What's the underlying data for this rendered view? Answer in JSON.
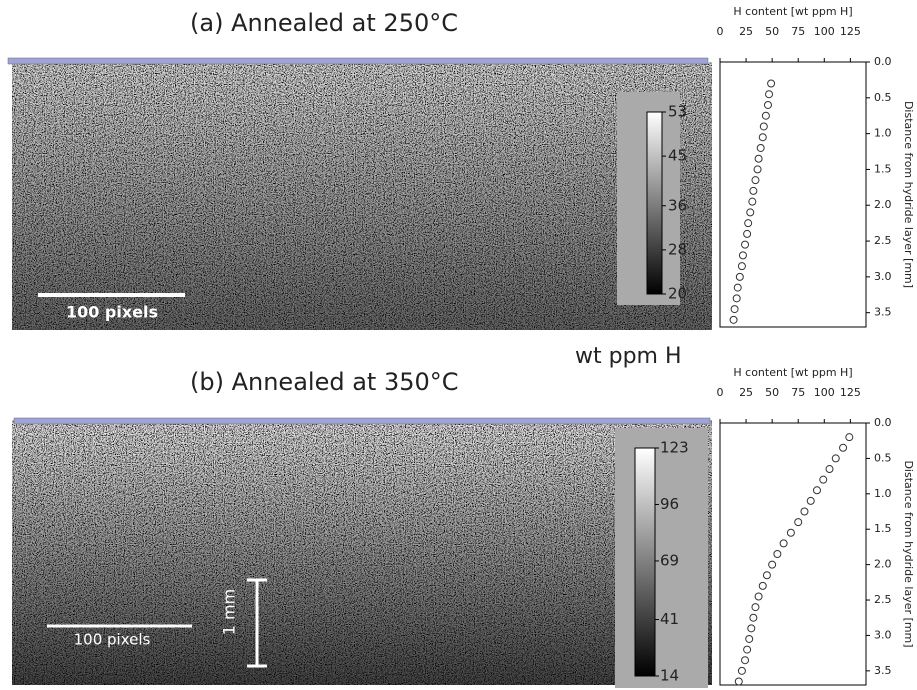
{
  "panels": [
    {
      "title": "(a) Annealed at 250°C",
      "scale_bar": "100 pixels",
      "colorbar": {
        "lim": [
          20,
          53
        ],
        "ticks": [
          20,
          28,
          36,
          45,
          53
        ]
      }
    },
    {
      "title": "(b) Annealed at 350°C",
      "scale_bar": "100 pixels",
      "scale_bar_vertical": "1 mm",
      "colorbar": {
        "lim": [
          14,
          123
        ],
        "ticks": [
          14,
          41,
          69,
          96,
          123
        ]
      }
    }
  ],
  "colorbar_label": "wt ppm H",
  "chart_data": [
    {
      "type": "scatter",
      "xlabel": "H content [wt ppm H]",
      "ylabel": "Distance from hydride layer [mm]",
      "xlim": [
        0,
        140
      ],
      "xticks": [
        0,
        25,
        50,
        75,
        100,
        125
      ],
      "ylim": [
        0,
        3.7
      ],
      "yticks": [
        {
          "value": 0,
          "label": "0.0"
        },
        0.5,
        {
          "value": 1,
          "label": "1.0"
        },
        1.5,
        {
          "value": 2,
          "label": "2.0"
        },
        2.5,
        {
          "value": 3,
          "label": "3.0"
        },
        3.5
      ],
      "x": [
        49,
        47,
        46,
        44,
        42,
        41,
        39,
        37,
        36,
        34,
        32,
        31,
        29,
        27,
        26,
        24,
        22,
        21,
        19,
        17,
        16,
        14,
        13
      ],
      "values": [
        0.3,
        0.45,
        0.6,
        0.75,
        0.9,
        1.05,
        1.2,
        1.35,
        1.5,
        1.65,
        1.8,
        1.95,
        2.1,
        2.25,
        2.4,
        2.55,
        2.7,
        2.85,
        3.0,
        3.15,
        3.3,
        3.45,
        3.6
      ]
    },
    {
      "type": "scatter",
      "xlabel": "H content [wt ppm H]",
      "ylabel": "Distance from hydride layer [mm]",
      "xlim": [
        0,
        140
      ],
      "xticks": [
        0,
        25,
        50,
        75,
        100,
        125
      ],
      "ylim": [
        0,
        3.7
      ],
      "yticks": [
        {
          "value": 0,
          "label": "0.0"
        },
        0.5,
        {
          "value": 1,
          "label": "1.0"
        },
        1.5,
        {
          "value": 2,
          "label": "2.0"
        },
        2.5,
        {
          "value": 3,
          "label": "3.0"
        },
        3.5
      ],
      "x": [
        124,
        118,
        111,
        105,
        99,
        93,
        87,
        81,
        75,
        68,
        61,
        55,
        50,
        45,
        41,
        37,
        34,
        32,
        30,
        28,
        26,
        24,
        21,
        18
      ],
      "values": [
        0.2,
        0.35,
        0.5,
        0.65,
        0.8,
        0.95,
        1.1,
        1.25,
        1.4,
        1.55,
        1.7,
        1.85,
        2.0,
        2.15,
        2.3,
        2.45,
        2.6,
        2.75,
        2.9,
        3.05,
        3.2,
        3.35,
        3.5,
        3.65
      ]
    }
  ]
}
